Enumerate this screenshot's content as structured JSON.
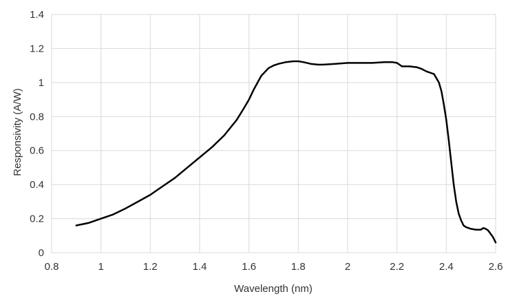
{
  "chart_data": {
    "type": "line",
    "title": "",
    "xlabel": "Wavelength (nm)",
    "ylabel": "Responsivity (A/W)",
    "xlim": [
      0.8,
      2.6
    ],
    "ylim": [
      0,
      1.4
    ],
    "xticks": [
      0.8,
      1,
      1.2,
      1.4,
      1.6,
      1.8,
      2,
      2.2,
      2.4,
      2.6
    ],
    "yticks": [
      0,
      0.2,
      0.4,
      0.6,
      0.8,
      1,
      1.2,
      1.4
    ],
    "xtick_labels": [
      "0.8",
      "1",
      "1.2",
      "1.4",
      "1.6",
      "1.8",
      "2",
      "2.2",
      "2.4",
      "2.6"
    ],
    "ytick_labels": [
      "0",
      "0.2",
      "0.4",
      "0.6",
      "0.8",
      "1",
      "1.2",
      "1.4"
    ],
    "grid": true,
    "legend": "none",
    "series": [
      {
        "color": "#000000",
        "x": [
          0.9,
          0.95,
          1.0,
          1.05,
          1.1,
          1.15,
          1.2,
          1.25,
          1.3,
          1.35,
          1.4,
          1.45,
          1.5,
          1.55,
          1.58,
          1.6,
          1.62,
          1.65,
          1.68,
          1.7,
          1.72,
          1.75,
          1.78,
          1.8,
          1.82,
          1.85,
          1.88,
          1.9,
          1.95,
          2.0,
          2.05,
          2.1,
          2.15,
          2.18,
          2.2,
          2.22,
          2.25,
          2.28,
          2.3,
          2.32,
          2.35,
          2.37,
          2.38,
          2.39,
          2.4,
          2.41,
          2.42,
          2.43,
          2.44,
          2.45,
          2.46,
          2.47,
          2.48,
          2.5,
          2.52,
          2.54,
          2.55,
          2.56,
          2.57,
          2.58,
          2.59,
          2.6
        ],
        "y": [
          0.16,
          0.175,
          0.2,
          0.225,
          0.26,
          0.3,
          0.34,
          0.39,
          0.44,
          0.5,
          0.56,
          0.62,
          0.69,
          0.78,
          0.85,
          0.9,
          0.96,
          1.04,
          1.085,
          1.1,
          1.11,
          1.12,
          1.125,
          1.125,
          1.12,
          1.11,
          1.105,
          1.105,
          1.11,
          1.115,
          1.115,
          1.115,
          1.12,
          1.12,
          1.115,
          1.095,
          1.095,
          1.09,
          1.08,
          1.065,
          1.05,
          1.0,
          0.95,
          0.87,
          0.78,
          0.66,
          0.53,
          0.4,
          0.3,
          0.23,
          0.19,
          0.16,
          0.15,
          0.14,
          0.135,
          0.135,
          0.145,
          0.14,
          0.13,
          0.11,
          0.09,
          0.06
        ]
      }
    ]
  }
}
